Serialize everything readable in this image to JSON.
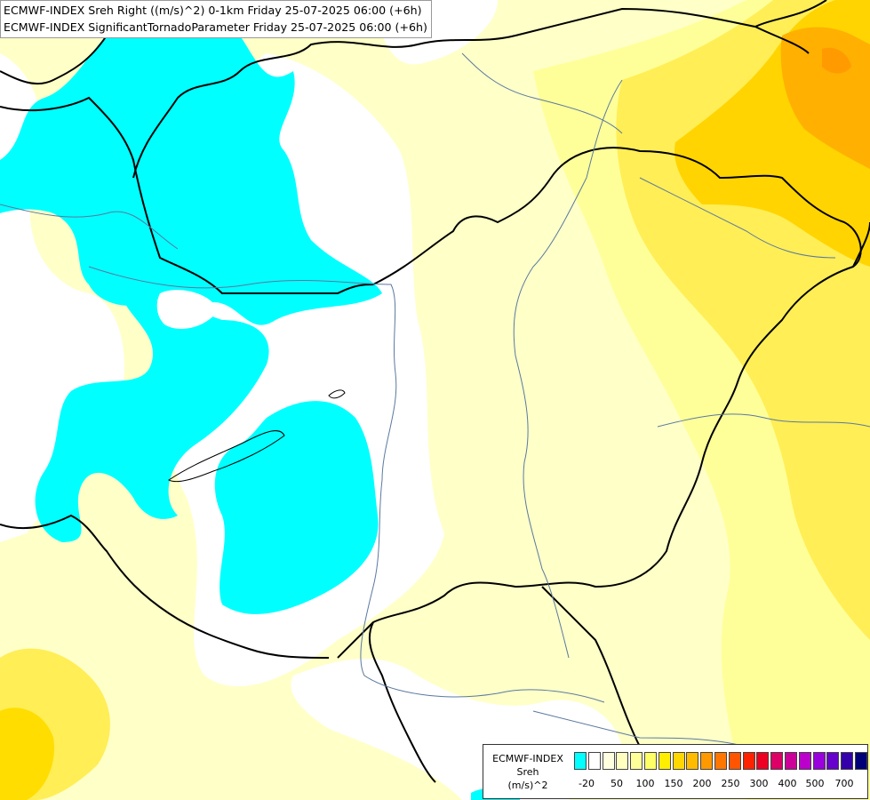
{
  "titles": {
    "line1": "ECMWF-INDEX Sreh Right ((m/s)^2) 0-1km Friday 25-07-2025 06:00 (+6h)",
    "line2": "ECMWF-INDEX SignificantTornadoParameter Friday 25-07-2025 06:00 (+6h)"
  },
  "legend": {
    "title_line1": "ECMWF-INDEX",
    "title_line2": "Sreh",
    "title_line3": "(m/s)^2",
    "colors": [
      "#00ffff",
      "#ffffff",
      "#ffffe0",
      "#ffffc0",
      "#ffff99",
      "#ffff66",
      "#ffee00",
      "#ffd700",
      "#ffbb00",
      "#ff9900",
      "#ff7700",
      "#ff5500",
      "#ff2200",
      "#ee0022",
      "#dd0066",
      "#cc0099",
      "#bb00cc",
      "#9900dd",
      "#6600cc",
      "#3300aa",
      "#000077"
    ],
    "ticks": [
      "-20",
      "50",
      "100",
      "150",
      "200",
      "250",
      "300",
      "400",
      "500",
      "700"
    ]
  },
  "map_colors": {
    "cyan": "#00ffff",
    "pale_yellow": "#ffffc0",
    "light_yellow": "#ffff99",
    "yellow": "#ffee33",
    "gold": "#ffd400",
    "orange": "#ffa500",
    "border": "#000000",
    "river": "#5a78a0"
  }
}
